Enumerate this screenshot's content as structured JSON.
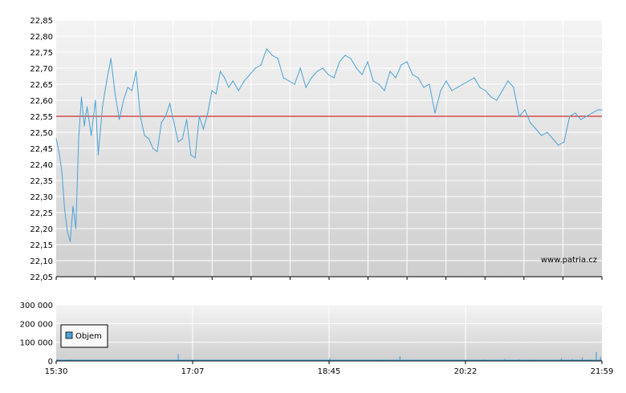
{
  "watermark": "www.patria.cz",
  "colors": {
    "price_line": "#4aa3d8",
    "reference_line": "#cc0000",
    "volume_bar": "#4aa3d8",
    "plot_bg_top": "#f4f4f4",
    "plot_bg_bottom": "#cfcfcf",
    "grid": "#ffffff",
    "axis": "#000000"
  },
  "chart_data": [
    {
      "type": "line",
      "title": "",
      "xlabel": "",
      "ylabel": "",
      "ylim": [
        22.05,
        22.85
      ],
      "yticks": [
        "22,05",
        "22,10",
        "22,15",
        "22,20",
        "22,25",
        "22,30",
        "22,35",
        "22,40",
        "22,45",
        "22,50",
        "22,55",
        "22,60",
        "22,65",
        "22,70",
        "22,75",
        "22,80",
        "22,85"
      ],
      "grid": true,
      "reference_value": 22.55,
      "x_range": [
        "15:30",
        "21:59"
      ],
      "series": [
        {
          "x": [
            "15:30",
            "15:32",
            "15:34",
            "15:36",
            "15:38",
            "15:40",
            "15:42",
            "15:44",
            "15:46",
            "15:48",
            "15:50",
            "15:52",
            "15:55",
            "15:58",
            "16:00",
            "16:03",
            "16:06",
            "16:09",
            "16:12",
            "16:15",
            "16:18",
            "16:21",
            "16:24",
            "16:27",
            "16:30",
            "16:33",
            "16:36",
            "16:39",
            "16:42",
            "16:45",
            "16:48",
            "16:51",
            "16:54",
            "16:57",
            "17:00",
            "17:03",
            "17:06",
            "17:09",
            "17:12",
            "17:15",
            "17:18",
            "17:21",
            "17:24",
            "17:27",
            "17:30",
            "17:33",
            "17:36",
            "17:40",
            "17:44",
            "17:48",
            "17:52",
            "17:56",
            "18:00",
            "18:04",
            "18:08",
            "18:12",
            "18:16",
            "18:20",
            "18:24",
            "18:28",
            "18:32",
            "18:36",
            "18:40",
            "18:44",
            "18:48",
            "18:52",
            "18:56",
            "19:00",
            "19:04",
            "19:08",
            "19:12",
            "19:16",
            "19:20",
            "19:24",
            "19:28",
            "19:32",
            "19:36",
            "19:40",
            "19:44",
            "19:48",
            "19:52",
            "19:56",
            "20:00",
            "20:04",
            "20:08",
            "20:12",
            "20:16",
            "20:20",
            "20:24",
            "20:28",
            "20:32",
            "20:36",
            "20:40",
            "20:44",
            "20:48",
            "20:52",
            "20:56",
            "21:00",
            "21:04",
            "21:08",
            "21:12",
            "21:16",
            "21:20",
            "21:24",
            "21:28",
            "21:32",
            "21:36",
            "21:40",
            "21:44",
            "21:48",
            "21:52",
            "21:56",
            "21:59"
          ],
          "values": [
            22.48,
            22.44,
            22.38,
            22.26,
            22.19,
            22.16,
            22.27,
            22.2,
            22.48,
            22.61,
            22.52,
            22.58,
            22.49,
            22.6,
            22.43,
            22.58,
            22.66,
            22.73,
            22.62,
            22.54,
            22.6,
            22.64,
            22.63,
            22.69,
            22.55,
            22.49,
            22.48,
            22.45,
            22.44,
            22.53,
            22.55,
            22.59,
            22.53,
            22.47,
            22.48,
            22.54,
            22.43,
            22.42,
            22.55,
            22.51,
            22.56,
            22.63,
            22.62,
            22.69,
            22.67,
            22.64,
            22.66,
            22.63,
            22.66,
            22.68,
            22.7,
            22.71,
            22.76,
            22.74,
            22.73,
            22.67,
            22.66,
            22.65,
            22.7,
            22.64,
            22.67,
            22.69,
            22.7,
            22.68,
            22.67,
            22.72,
            22.74,
            22.73,
            22.7,
            22.68,
            22.72,
            22.66,
            22.65,
            22.63,
            22.69,
            22.67,
            22.71,
            22.72,
            22.68,
            22.67,
            22.64,
            22.65,
            22.56,
            22.63,
            22.66,
            22.63,
            22.64,
            22.65,
            22.66,
            22.67,
            22.64,
            22.63,
            22.61,
            22.6,
            22.63,
            22.66,
            22.64,
            22.55,
            22.57,
            22.53,
            22.51,
            22.49,
            22.5,
            22.48,
            22.46,
            22.47,
            22.55,
            22.56,
            22.54,
            22.55,
            22.56,
            22.57,
            22.57
          ]
        }
      ]
    },
    {
      "type": "bar",
      "title": "",
      "xlabel": "",
      "ylabel": "",
      "ylim": [
        0,
        300000
      ],
      "yticks": [
        "0",
        "100 000",
        "200 000",
        "300 000"
      ],
      "xticks": [
        "15:30",
        "17:07",
        "18:45",
        "20:22",
        "21:59"
      ],
      "grid": true,
      "legend": {
        "position": "left",
        "entries": [
          "Objem"
        ]
      },
      "series": [
        {
          "name": "Objem",
          "x": [
            "15:31",
            "15:40",
            "15:55",
            "16:10",
            "16:30",
            "16:57",
            "17:00",
            "17:10",
            "17:25",
            "17:40",
            "17:50",
            "18:05",
            "18:20",
            "18:35",
            "18:45",
            "18:55",
            "19:05",
            "19:20",
            "19:35",
            "19:50",
            "20:05",
            "20:20",
            "20:35",
            "20:50",
            "21:00",
            "21:10",
            "21:20",
            "21:30",
            "21:38",
            "21:45",
            "21:50",
            "21:55",
            "21:58"
          ],
          "values": [
            9000,
            8000,
            6000,
            5000,
            4000,
            36000,
            5000,
            4000,
            6000,
            3000,
            5000,
            4000,
            6000,
            5000,
            16000,
            4000,
            5000,
            7000,
            24000,
            4000,
            5000,
            6000,
            8000,
            12000,
            9000,
            7000,
            6000,
            14000,
            10000,
            18000,
            8000,
            48000,
            22000
          ]
        }
      ]
    }
  ]
}
